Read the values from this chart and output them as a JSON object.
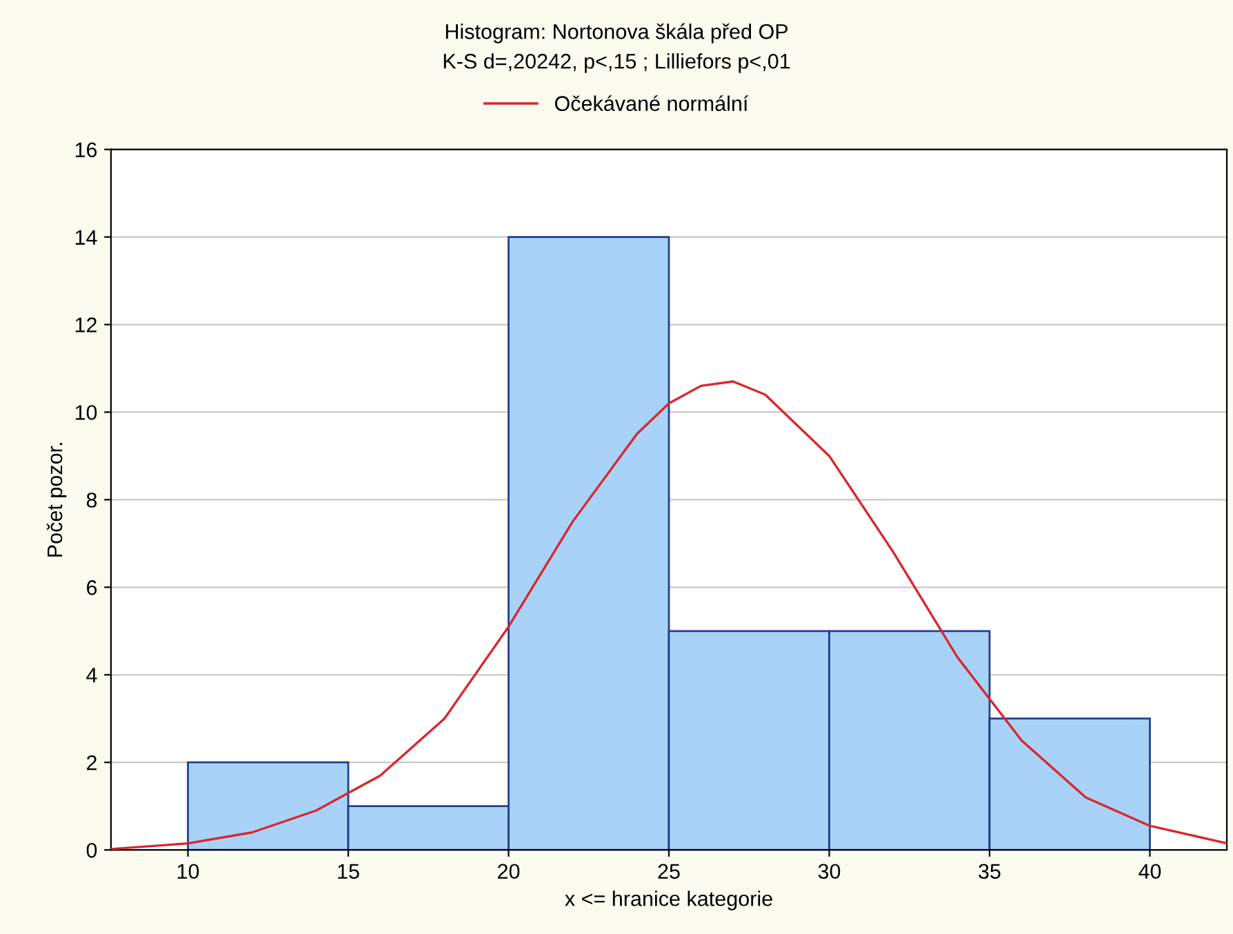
{
  "chart_data": {
    "type": "histogram",
    "title": "Histogram: Nortonova škála před OP",
    "subtitle": "K-S d=,20242, p<,15 ; Lilliefors p<,01",
    "xlabel": "x <= hranice kategorie",
    "ylabel": "Počet pozor.",
    "bins": [
      10,
      15,
      20,
      25,
      30,
      35,
      40
    ],
    "values": [
      2,
      1,
      14,
      5,
      5,
      3
    ],
    "color": "#a8d2f8",
    "series": [
      {
        "name": "Očekávané normální",
        "type": "line",
        "color": "#d9262c",
        "x": [
          7.6,
          10,
          12,
          14,
          16,
          18,
          20,
          22,
          24,
          25,
          26,
          27,
          28,
          30,
          32,
          34,
          36,
          38,
          40,
          42.4
        ],
        "values": [
          0.02,
          0.15,
          0.4,
          0.9,
          1.7,
          3.0,
          5.1,
          7.5,
          9.5,
          10.2,
          10.6,
          10.7,
          10.4,
          9.0,
          6.8,
          4.4,
          2.5,
          1.2,
          0.55,
          0.15
        ]
      }
    ],
    "xlim": [
      7.6,
      42.4
    ],
    "xticks": [
      10,
      15,
      20,
      25,
      30,
      35,
      40
    ],
    "ylim": [
      0,
      16
    ],
    "yticks": [
      0,
      2,
      4,
      6,
      8,
      10,
      12,
      14,
      16
    ],
    "grid": "y",
    "legend": "top"
  }
}
